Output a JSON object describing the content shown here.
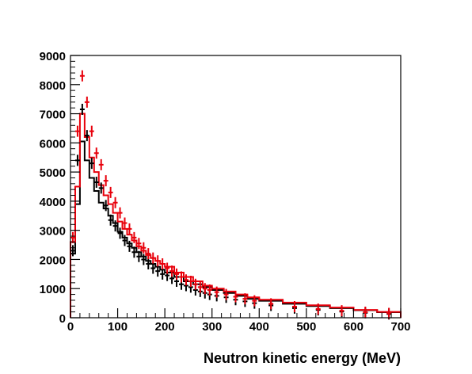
{
  "chart_data": {
    "type": "histogram",
    "title": "",
    "xlabel": "Neutron kinetic energy (MeV)",
    "ylabel": "",
    "xlim": [
      0,
      700
    ],
    "ylim": [
      0,
      9000
    ],
    "xticks": [
      "0",
      "100",
      "200",
      "300",
      "400",
      "500",
      "600",
      "700"
    ],
    "yticks": [
      "0",
      "1000",
      "2000",
      "3000",
      "4000",
      "5000",
      "6000",
      "7000",
      "8000",
      "9000"
    ],
    "bin_width": 10,
    "grid": false,
    "legend": "none",
    "series": [
      {
        "style": "histogram",
        "color": "#000000",
        "bin_edges": [
          0,
          10,
          20,
          30,
          40,
          50,
          60,
          70,
          80,
          90,
          100,
          110,
          120,
          130,
          140,
          150,
          160,
          170,
          180,
          190,
          200,
          220,
          240,
          260,
          280,
          300,
          325,
          350,
          375,
          400,
          450,
          500,
          550,
          600,
          650,
          700
        ],
        "values": [
          2200,
          3900,
          6050,
          5400,
          4800,
          4350,
          3950,
          3750,
          3500,
          3250,
          2950,
          2750,
          2550,
          2400,
          2250,
          2100,
          1950,
          1850,
          1750,
          1650,
          1550,
          1400,
          1250,
          1150,
          1050,
          950,
          850,
          750,
          650,
          580,
          480,
          400,
          330,
          260,
          190
        ]
      },
      {
        "style": "histogram",
        "color": "#e8000b",
        "bin_edges": [
          0,
          10,
          20,
          30,
          40,
          50,
          60,
          70,
          80,
          90,
          100,
          110,
          120,
          130,
          140,
          150,
          160,
          170,
          180,
          190,
          200,
          220,
          240,
          260,
          280,
          300,
          325,
          350,
          375,
          400,
          450,
          500,
          550,
          600,
          650,
          700
        ],
        "values": [
          2600,
          4500,
          7000,
          6200,
          5500,
          5000,
          4550,
          4200,
          3900,
          3600,
          3300,
          3050,
          2850,
          2650,
          2450,
          2300,
          2150,
          2050,
          1950,
          1850,
          1750,
          1550,
          1400,
          1250,
          1100,
          1000,
          900,
          800,
          700,
          620,
          520,
          430,
          350,
          270,
          200
        ]
      },
      {
        "style": "points",
        "color": "#000000",
        "x": [
          5,
          15,
          25,
          35,
          45,
          55,
          65,
          75,
          85,
          95,
          105,
          115,
          125,
          135,
          145,
          155,
          165,
          175,
          185,
          195,
          205,
          215,
          225,
          235,
          245,
          255,
          265,
          275,
          285,
          295,
          310,
          330,
          350,
          370,
          390,
          425,
          475,
          525,
          575,
          625,
          675
        ],
        "y": [
          2300,
          5400,
          7150,
          6250,
          5300,
          4650,
          4450,
          3850,
          3350,
          3150,
          2900,
          2650,
          2450,
          2250,
          2100,
          2000,
          1850,
          1700,
          1600,
          1500,
          1450,
          1350,
          1250,
          1150,
          1100,
          1050,
          950,
          900,
          850,
          800,
          750,
          700,
          620,
          560,
          500,
          420,
          330,
          270,
          210,
          170,
          130
        ]
      },
      {
        "style": "points",
        "color": "#e8000b",
        "x": [
          5,
          15,
          25,
          35,
          45,
          55,
          65,
          75,
          85,
          95,
          105,
          115,
          125,
          135,
          145,
          155,
          165,
          175,
          185,
          195,
          205,
          215,
          225,
          235,
          245,
          255,
          265,
          275,
          285,
          295,
          310,
          330,
          350,
          370,
          390,
          425,
          475,
          525,
          575,
          625,
          675
        ],
        "y": [
          2750,
          6400,
          8300,
          7400,
          6400,
          5650,
          5250,
          4700,
          4300,
          3950,
          3600,
          3250,
          3050,
          2750,
          2550,
          2400,
          2200,
          2050,
          1950,
          1850,
          1700,
          1600,
          1500,
          1400,
          1300,
          1250,
          1150,
          1050,
          1000,
          950,
          880,
          800,
          720,
          650,
          580,
          480,
          380,
          300,
          240,
          190,
          150
        ]
      }
    ]
  }
}
